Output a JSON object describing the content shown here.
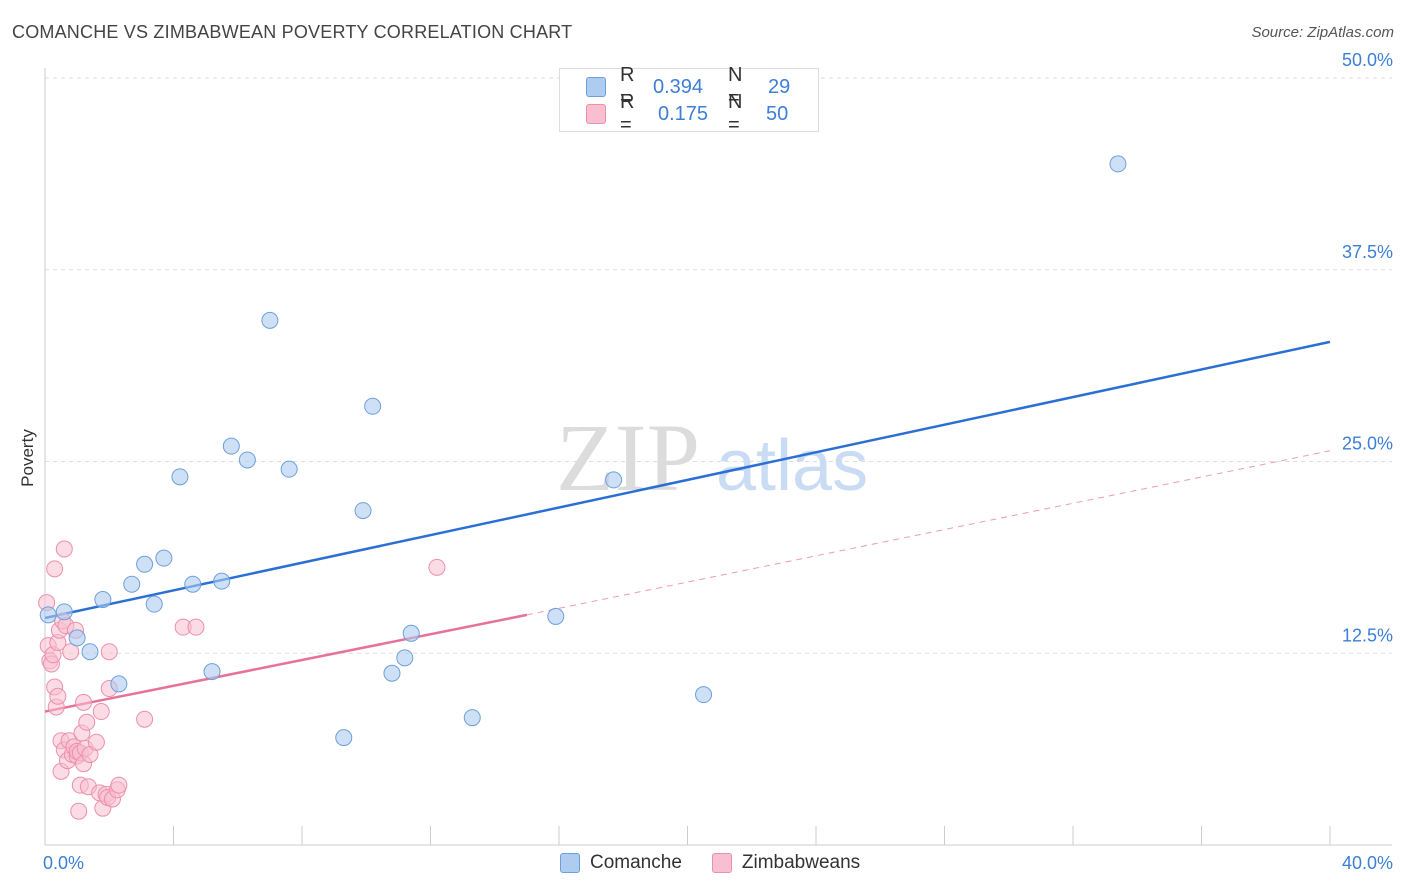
{
  "header": {
    "title": "COMANCHE VS ZIMBABWEAN POVERTY CORRELATION CHART",
    "source": "Source: ZipAtlas.com"
  },
  "watermark": {
    "zip": "ZIP",
    "atlas": "atlas"
  },
  "legend_top": {
    "rows": [
      {
        "r_label": "R =",
        "r_value": "0.394",
        "n_label": "N =",
        "n_value": "29"
      },
      {
        "r_label": "R =",
        "r_value": "0.175",
        "n_label": "N =",
        "n_value": "50"
      }
    ]
  },
  "legend_bottom": {
    "items": [
      "Comanche",
      "Zimbabweans"
    ]
  },
  "colors": {
    "blue_fill": "#aecbf0",
    "blue_stroke": "#6e9fdc",
    "blue_line": "#2a6fd4",
    "pink_fill": "#f7bfd0",
    "pink_stroke": "#ec8fae",
    "pink_line": "#e8709a",
    "tick_label": "#3d7fd6",
    "grid": "#dddddd"
  },
  "chart_data": {
    "type": "scatter",
    "title": "COMANCHE VS ZIMBABWEAN POVERTY CORRELATION CHART",
    "xlabel": "",
    "ylabel": "Poverty",
    "xlim": [
      0,
      40
    ],
    "ylim": [
      0,
      50
    ],
    "x_tick_labels": [
      "0.0%",
      "40.0%"
    ],
    "y_ticks": [
      12.5,
      25.0,
      37.5,
      50.0
    ],
    "y_tick_labels": [
      "12.5%",
      "25.0%",
      "37.5%",
      "50.0%"
    ],
    "series": [
      {
        "name": "Comanche",
        "color": "#aecbf0",
        "r": 0.394,
        "n": 29,
        "trend": {
          "x0": 0,
          "y0": 14.8,
          "x1": 40,
          "y1": 32.8
        },
        "points": [
          [
            0.1,
            15.0
          ],
          [
            0.6,
            15.2
          ],
          [
            1.0,
            13.5
          ],
          [
            1.4,
            12.6
          ],
          [
            1.8,
            16.0
          ],
          [
            2.3,
            10.5
          ],
          [
            2.7,
            17.0
          ],
          [
            3.1,
            18.3
          ],
          [
            3.4,
            15.7
          ],
          [
            3.7,
            18.7
          ],
          [
            4.2,
            24.0
          ],
          [
            4.6,
            17.0
          ],
          [
            5.2,
            11.3
          ],
          [
            5.5,
            17.2
          ],
          [
            5.8,
            26.0
          ],
          [
            6.3,
            25.1
          ],
          [
            7.0,
            34.2
          ],
          [
            7.6,
            24.5
          ],
          [
            9.3,
            7.0
          ],
          [
            9.9,
            21.8
          ],
          [
            10.2,
            28.6
          ],
          [
            10.8,
            11.2
          ],
          [
            11.2,
            12.2
          ],
          [
            11.4,
            13.8
          ],
          [
            13.3,
            8.3
          ],
          [
            15.9,
            14.9
          ],
          [
            17.7,
            23.8
          ],
          [
            20.5,
            9.8
          ],
          [
            33.4,
            44.4
          ]
        ]
      },
      {
        "name": "Zimbabweans",
        "color": "#f7bfd0",
        "r": 0.175,
        "n": 50,
        "trend": {
          "x0": 0,
          "y0": 8.7,
          "x1": 15,
          "y1": 15.0
        },
        "trend_extended": {
          "x0": 15,
          "y0": 15.0,
          "x1": 40,
          "y1": 25.7
        },
        "points": [
          [
            0.05,
            15.8
          ],
          [
            0.1,
            13.0
          ],
          [
            0.15,
            12.0
          ],
          [
            0.2,
            11.8
          ],
          [
            0.25,
            12.4
          ],
          [
            0.3,
            10.3
          ],
          [
            0.35,
            9.0
          ],
          [
            0.3,
            18.0
          ],
          [
            0.4,
            13.2
          ],
          [
            0.4,
            9.7
          ],
          [
            0.45,
            14.0
          ],
          [
            0.5,
            6.8
          ],
          [
            0.5,
            4.8
          ],
          [
            0.55,
            14.6
          ],
          [
            0.6,
            19.3
          ],
          [
            0.6,
            6.2
          ],
          [
            0.65,
            14.3
          ],
          [
            0.7,
            5.5
          ],
          [
            0.75,
            6.8
          ],
          [
            0.8,
            12.6
          ],
          [
            0.85,
            5.9
          ],
          [
            0.9,
            6.4
          ],
          [
            0.95,
            14.0
          ],
          [
            1.0,
            5.8
          ],
          [
            1.0,
            6.1
          ],
          [
            1.05,
            2.2
          ],
          [
            1.1,
            6.0
          ],
          [
            1.1,
            3.9
          ],
          [
            1.15,
            7.3
          ],
          [
            1.2,
            9.3
          ],
          [
            1.2,
            5.3
          ],
          [
            1.25,
            6.3
          ],
          [
            1.3,
            8.0
          ],
          [
            1.35,
            3.8
          ],
          [
            1.4,
            5.9
          ],
          [
            1.6,
            6.7
          ],
          [
            1.7,
            3.4
          ],
          [
            1.75,
            8.7
          ],
          [
            1.8,
            2.4
          ],
          [
            1.9,
            3.3
          ],
          [
            1.95,
            3.1
          ],
          [
            2.0,
            10.2
          ],
          [
            2.0,
            12.6
          ],
          [
            2.1,
            3.0
          ],
          [
            2.25,
            3.6
          ],
          [
            2.3,
            3.9
          ],
          [
            3.1,
            8.2
          ],
          [
            4.3,
            14.2
          ],
          [
            4.7,
            14.2
          ],
          [
            12.2,
            18.1
          ]
        ]
      }
    ]
  }
}
